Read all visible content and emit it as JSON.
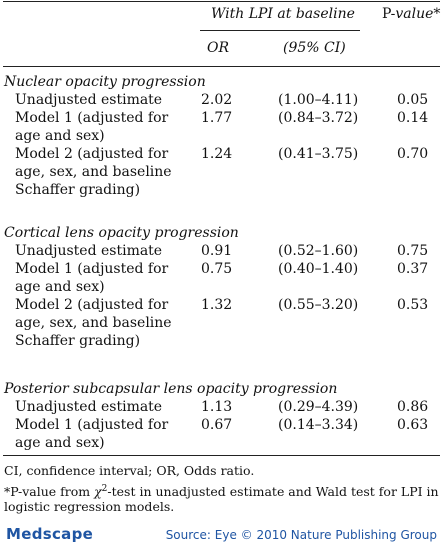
{
  "header": {
    "group": "With LPI at baseline",
    "pvalue": "P-value*",
    "or": "OR",
    "ci": "(95% CI)"
  },
  "sections": [
    {
      "title": "Nuclear opacity progression",
      "rows": [
        {
          "label_lines": [
            "Unadjusted estimate"
          ],
          "or": "2.02",
          "ci": "(1.00–4.11)",
          "p": "0.05"
        },
        {
          "label_lines": [
            "Model 1 (adjusted for",
            "age and sex)"
          ],
          "or": "1.77",
          "ci": "(0.84–3.72)",
          "p": "0.14"
        },
        {
          "label_lines": [
            "Model 2 (adjusted for",
            "age, sex, and baseline",
            "Schaffer grading)"
          ],
          "or": "1.24",
          "ci": "(0.41–3.75)",
          "p": "0.70"
        }
      ]
    },
    {
      "title": "Cortical lens opacity progression",
      "rows": [
        {
          "label_lines": [
            "Unadjusted estimate"
          ],
          "or": "0.91",
          "ci": "(0.52–1.60)",
          "p": "0.75"
        },
        {
          "label_lines": [
            "Model 1 (adjusted for",
            "age and sex)"
          ],
          "or": "0.75",
          "ci": "(0.40–1.40)",
          "p": "0.37"
        },
        {
          "label_lines": [
            "Model 2 (adjusted for",
            "age, sex, and baseline",
            "Schaffer grading)"
          ],
          "or": "1.32",
          "ci": "(0.55–3.20)",
          "p": "0.53"
        }
      ]
    },
    {
      "title": "Posterior subcapsular lens opacity progression",
      "rows": [
        {
          "label_lines": [
            "Unadjusted estimate"
          ],
          "or": "1.13",
          "ci": "(0.29–4.39)",
          "p": "0.86"
        },
        {
          "label_lines": [
            "Model 1 (adjusted for",
            "age and sex)"
          ],
          "or": "0.67",
          "ci": "(0.14–3.34)",
          "p": "0.63"
        }
      ]
    }
  ],
  "footnotes": {
    "abbrev": "CI, confidence interval; OR, Odds ratio.",
    "star_line1_a": "*P-value from ",
    "chi": "χ",
    "sup2": "2",
    "star_line1_b": "-test in unadjusted estimate and Wald test for LPI in",
    "star_line2": "logistic regression models."
  },
  "footer": {
    "brand": "Medscape",
    "source": "Source: Eye © 2010 Nature Publishing Group"
  }
}
